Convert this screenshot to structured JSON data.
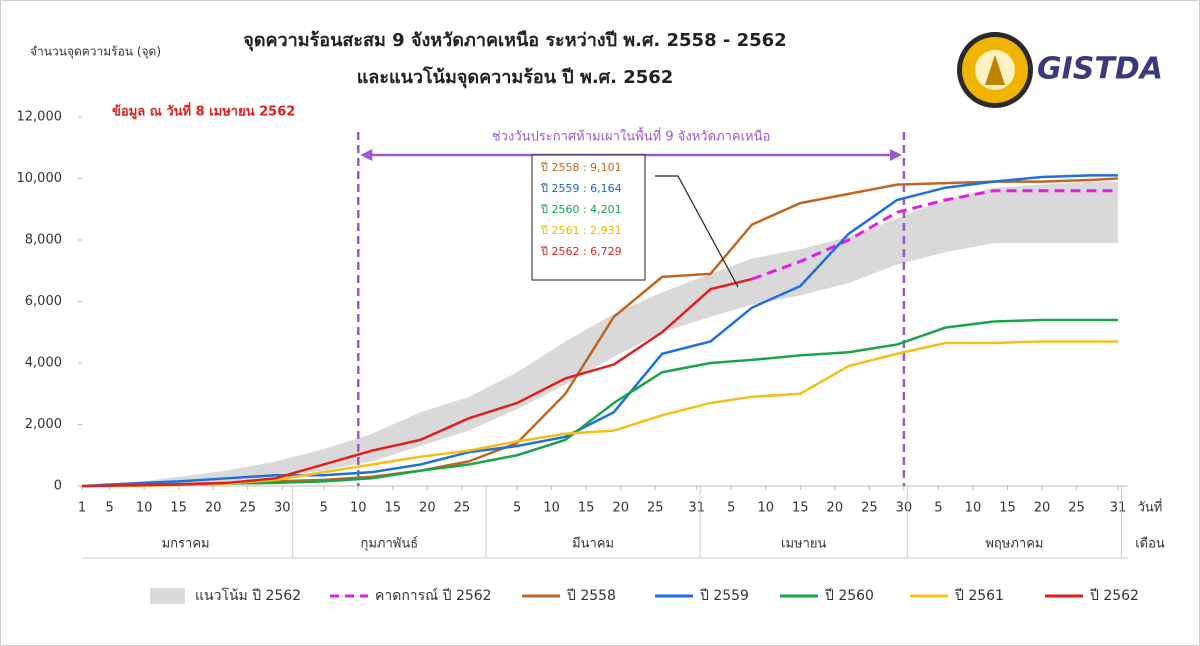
{
  "chart_data": {
    "type": "line",
    "title": "จุดความร้อนสะสม 9 จังหวัดภาคเหนือ ระหว่างปี พ.ศ. 2558 - 2562",
    "subtitle": "และแนวโน้มจุดความร้อน ปี พ.ศ. 2562",
    "y_label": "จำนวนจุดความร้อน (จุด)",
    "x_label": "วันที่",
    "month_label": "เดือน",
    "note": "ข้อมูล ณ วันที่ 8 เมษายน 2562",
    "logo_text": "GISTDA",
    "banner": {
      "text": "ช่วงวันประกาศห้ามเผาในพื้นที่ 9 จังหวัดภาคเหนือ",
      "range": [
        41,
        120
      ],
      "color": "#9b59d0"
    },
    "annotations": [
      {
        "text": "ปี 2558 : 9,101",
        "color": "#c0661f"
      },
      {
        "text": "ปี 2559 : 6,164",
        "color": "#1f5fd6"
      },
      {
        "text": "ปี 2560 : 4,201",
        "color": "#1aa34a"
      },
      {
        "text": "ปี 2561 : 2,931",
        "color": "#e6b800"
      },
      {
        "text": "ปี 2562 : 6,729",
        "color": "#e02020"
      }
    ],
    "months": [
      {
        "label": "มกราคม",
        "range": [
          1,
          31
        ]
      },
      {
        "label": "กุมภาพันธ์",
        "range": [
          32,
          59
        ]
      },
      {
        "label": "มีนาคม",
        "range": [
          60,
          90
        ]
      },
      {
        "label": "เมษายน",
        "range": [
          91,
          120
        ]
      },
      {
        "label": "พฤษภาคม",
        "range": [
          121,
          151
        ]
      }
    ],
    "xlim": [
      1,
      151
    ],
    "xticks": [
      1,
      5,
      10,
      15,
      20,
      25,
      30,
      {
        "value": 36,
        "label": "5"
      },
      {
        "value": 41,
        "label": "10"
      },
      {
        "value": 46,
        "label": "15"
      },
      {
        "value": 51,
        "label": "20"
      },
      {
        "value": 56,
        "label": "25"
      },
      {
        "value": 64,
        "label": "5"
      },
      {
        "value": 69,
        "label": "10"
      },
      {
        "value": 74,
        "label": "15"
      },
      {
        "value": 79,
        "label": "20"
      },
      {
        "value": 84,
        "label": "25"
      },
      {
        "value": 90,
        "label": "31"
      },
      {
        "value": 95,
        "label": "5"
      },
      {
        "value": 100,
        "label": "10"
      },
      {
        "value": 105,
        "label": "15"
      },
      {
        "value": 110,
        "label": "20"
      },
      {
        "value": 115,
        "label": "25"
      },
      {
        "value": 120,
        "label": "30"
      },
      {
        "value": 125,
        "label": "5"
      },
      {
        "value": 130,
        "label": "10"
      },
      {
        "value": 135,
        "label": "15"
      },
      {
        "value": 140,
        "label": "20"
      },
      {
        "value": 145,
        "label": "25"
      },
      {
        "value": 151,
        "label": "31"
      }
    ],
    "ylim": [
      0,
      12000
    ],
    "yticks": [
      0,
      {
        "value": 2000,
        "label": "2,000"
      },
      {
        "value": 4000,
        "label": "4,000"
      },
      {
        "value": 6000,
        "label": "6,000"
      },
      {
        "value": 8000,
        "label": "8,000"
      },
      {
        "value": 10000,
        "label": "10,000"
      },
      {
        "value": 12000,
        "label": "12,000"
      }
    ],
    "x": [
      1,
      8,
      15,
      22,
      29,
      36,
      43,
      50,
      57,
      64,
      71,
      78,
      85,
      92,
      98,
      105,
      112,
      119,
      126,
      133,
      140,
      147,
      151
    ],
    "series": [
      {
        "name": "แนวโน้ม ปี 2562",
        "color": "#d9d9d9",
        "style": "band",
        "lower": [
          0,
          0,
          50,
          150,
          300,
          500,
          800,
          1300,
          1800,
          2500,
          3300,
          4200,
          5000,
          5500,
          5900,
          6200,
          6600,
          7200,
          7600,
          7900,
          7900,
          7900,
          7900
        ],
        "upper": [
          0,
          100,
          300,
          500,
          800,
          1200,
          1700,
          2400,
          2900,
          3700,
          4700,
          5600,
          6300,
          6900,
          7400,
          7700,
          8100,
          8700,
          9300,
          9700,
          9800,
          9900,
          9900
        ]
      },
      {
        "name": "คาดการณ์ ปี 2562",
        "color": "#e020e0",
        "style": "dashed",
        "values": [
          null,
          null,
          null,
          null,
          null,
          null,
          null,
          null,
          null,
          null,
          null,
          null,
          null,
          null,
          6729,
          7300,
          8000,
          8900,
          9300,
          9600,
          9600,
          9600,
          9600
        ]
      },
      {
        "name": "ปี 2558",
        "color": "#c0661f",
        "style": "solid",
        "values": [
          0,
          30,
          60,
          100,
          150,
          200,
          300,
          500,
          800,
          1400,
          3000,
          5500,
          6800,
          6900,
          8500,
          9200,
          9500,
          9800,
          9850,
          9900,
          9900,
          9950,
          10000
        ]
      },
      {
        "name": "ปี 2559",
        "color": "#1f6fe0",
        "style": "solid",
        "values": [
          0,
          80,
          150,
          250,
          350,
          350,
          450,
          700,
          1100,
          1300,
          1600,
          2400,
          4300,
          4700,
          5800,
          6500,
          8200,
          9300,
          9700,
          9900,
          10050,
          10100,
          10100
        ]
      },
      {
        "name": "ปี 2560",
        "color": "#1aa34a",
        "style": "solid",
        "values": [
          0,
          20,
          40,
          80,
          100,
          150,
          250,
          500,
          700,
          1000,
          1500,
          2700,
          3700,
          4000,
          4100,
          4250,
          4350,
          4600,
          5150,
          5350,
          5400,
          5400,
          5400
        ]
      },
      {
        "name": "ปี 2561",
        "color": "#f5bf1a",
        "style": "solid",
        "values": [
          0,
          10,
          30,
          80,
          200,
          450,
          700,
          950,
          1150,
          1450,
          1700,
          1800,
          2300,
          2700,
          2900,
          3000,
          3900,
          4300,
          4650,
          4650,
          4700,
          4700,
          4700
        ]
      },
      {
        "name": "ปี 2562",
        "color": "#e02020",
        "style": "solid",
        "values": [
          0,
          20,
          50,
          100,
          250,
          700,
          1150,
          1500,
          2200,
          2700,
          3500,
          3950,
          5000,
          6400,
          6729,
          null,
          null,
          null,
          null,
          null,
          null,
          null,
          null
        ]
      }
    ]
  }
}
